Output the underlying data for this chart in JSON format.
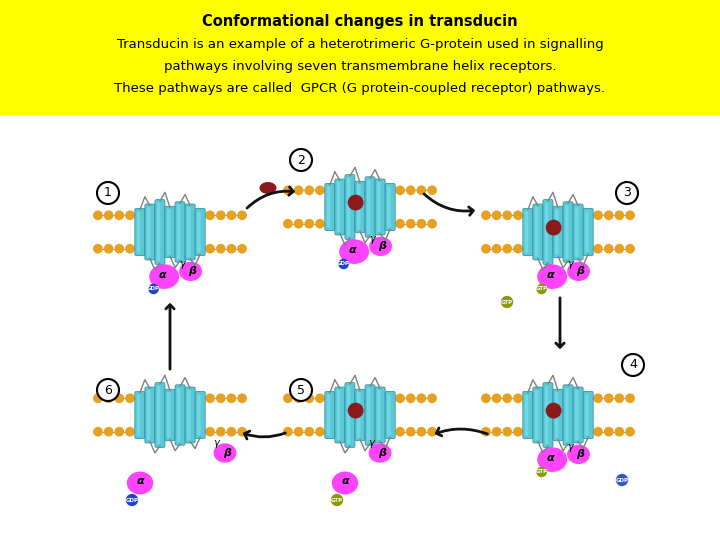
{
  "title_line1": "Conformational changes in transducin",
  "title_line2": "Transducin is an example of a heterotrimeric G-protein used in signalling",
  "title_line3": "pathways involving seven transmembrane helix receptors.",
  "title_line4": "These pathways are called  GPCR (G protein-coupled receptor) pathways.",
  "header_bg": "#FFFF00",
  "header_text_color": "#000000",
  "fig_bg": "#FFFFFF",
  "title_fontsize": 10.5,
  "body_fontsize": 9.5,
  "membrane_color": "#5BC8D4",
  "lipid_color": "#E8A020",
  "alpha_color": "#FF44FF",
  "beta_color": "#FF44FF",
  "ligand_color": "#8B1A1A",
  "gdp_color": "#2244CC",
  "gtp_color": "#8B9900",
  "arrow_color": "#111111"
}
